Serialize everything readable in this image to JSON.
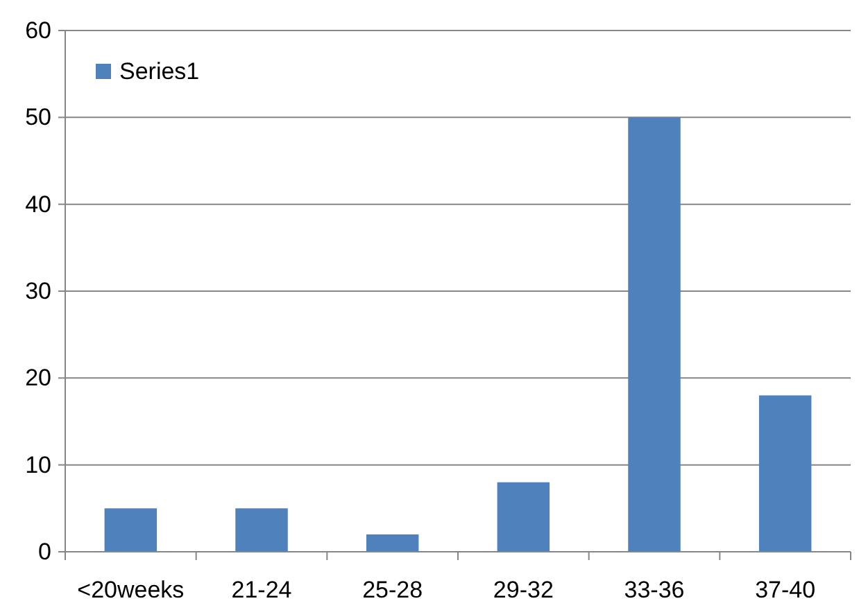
{
  "chart_data": {
    "type": "bar",
    "categories": [
      "<20weeks",
      "21-24",
      "25-28",
      "29-32",
      "33-36",
      "37-40"
    ],
    "series": [
      {
        "name": "Series1",
        "color": "#4f81bd",
        "values": [
          5,
          5,
          2,
          8,
          50,
          18
        ]
      }
    ],
    "ylim": [
      0,
      60
    ],
    "yticks": [
      0,
      10,
      20,
      30,
      40,
      50,
      60
    ],
    "grid": "y",
    "legend": "top left"
  }
}
